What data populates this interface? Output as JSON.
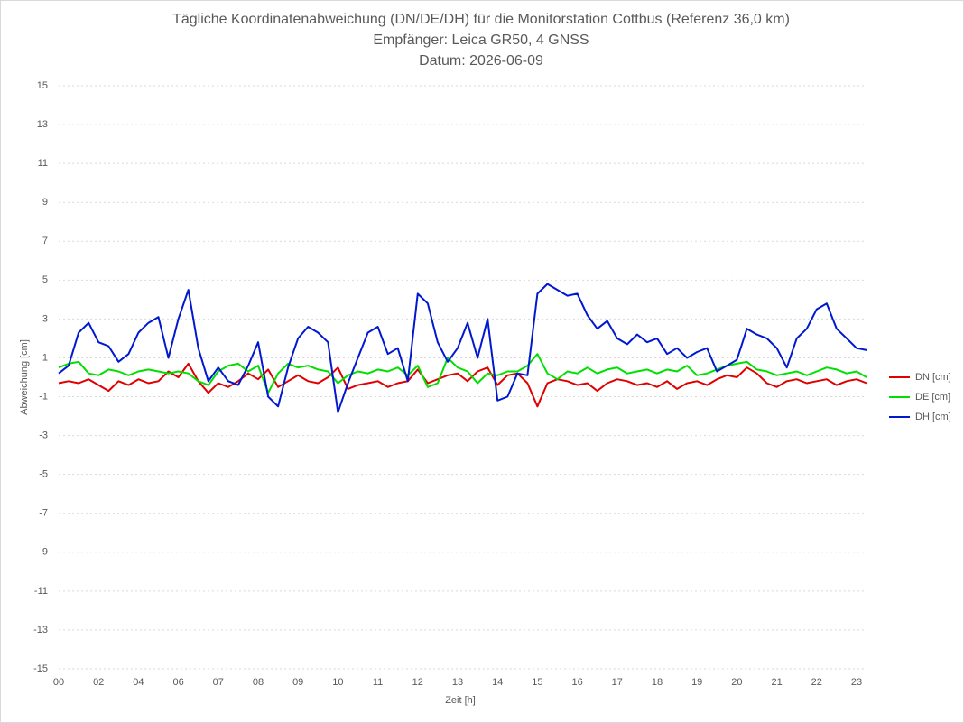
{
  "chart_data": {
    "type": "line",
    "title": "Tägliche Koordinatenabweichung (DN/DE/DH) für die Monitorstation Cottbus (Referenz 36,0 km)",
    "subtitle": [
      "Empfänger: Leica GR50, 4 GNSS",
      "Datum: 2026-06-09"
    ],
    "x_label": "Zeit [h]",
    "y_label": "Abweichung [cm]",
    "categories": [
      "00",
      null,
      null,
      null,
      "02",
      null,
      null,
      null,
      "04",
      null,
      null,
      null,
      "06",
      null,
      null,
      null,
      "07",
      null,
      null,
      null,
      "08",
      null,
      null,
      null,
      "09",
      null,
      null,
      null,
      "10",
      null,
      null,
      null,
      "11",
      null,
      null,
      null,
      "12",
      null,
      null,
      null,
      "13",
      null,
      null,
      null,
      "14",
      null,
      null,
      null,
      "15",
      null,
      null,
      null,
      "16",
      null,
      null,
      null,
      "17",
      null,
      null,
      null,
      "18",
      null,
      null,
      null,
      "19",
      null,
      null,
      null,
      "20",
      null,
      null,
      null,
      "21",
      null,
      null,
      null,
      "22",
      null,
      null,
      null,
      "23",
      null
    ],
    "series": [
      {
        "name": "DN [cm]",
        "color": "#e00000",
        "values": [
          -0.3,
          -0.2,
          -0.3,
          -0.1,
          -0.4,
          -0.7,
          -0.2,
          -0.4,
          -0.1,
          -0.3,
          -0.2,
          0.3,
          0.0,
          0.7,
          -0.2,
          -0.8,
          -0.3,
          -0.5,
          -0.2,
          0.2,
          -0.1,
          0.4,
          -0.5,
          -0.2,
          0.1,
          -0.2,
          -0.3,
          0.0,
          0.5,
          -0.6,
          -0.4,
          -0.3,
          -0.2,
          -0.5,
          -0.3,
          -0.2,
          0.4,
          -0.3,
          -0.1,
          0.1,
          0.2,
          -0.2,
          0.3,
          0.5,
          -0.4,
          0.1,
          0.2,
          -0.3,
          -1.5,
          -0.3,
          -0.1,
          -0.2,
          -0.4,
          -0.3,
          -0.7,
          -0.3,
          -0.1,
          -0.2,
          -0.4,
          -0.3,
          -0.5,
          -0.2,
          -0.6,
          -0.3,
          -0.2,
          -0.4,
          -0.1,
          0.1,
          0.0,
          0.5,
          0.2,
          -0.3,
          -0.5,
          -0.2,
          -0.1,
          -0.3,
          -0.2,
          -0.1,
          -0.4,
          -0.2,
          -0.1,
          -0.3
        ]
      },
      {
        "name": "DE [cm]",
        "color": "#00e000",
        "values": [
          0.5,
          0.7,
          0.8,
          0.2,
          0.1,
          0.4,
          0.3,
          0.1,
          0.3,
          0.4,
          0.3,
          0.2,
          0.3,
          0.2,
          -0.2,
          -0.4,
          0.3,
          0.6,
          0.7,
          0.3,
          0.6,
          -0.8,
          0.2,
          0.7,
          0.5,
          0.6,
          0.4,
          0.3,
          -0.3,
          0.1,
          0.3,
          0.2,
          0.4,
          0.3,
          0.5,
          0.1,
          0.6,
          -0.5,
          -0.3,
          1.0,
          0.5,
          0.3,
          -0.3,
          0.2,
          0.1,
          0.3,
          0.3,
          0.6,
          1.2,
          0.2,
          -0.1,
          0.3,
          0.2,
          0.5,
          0.2,
          0.4,
          0.5,
          0.2,
          0.3,
          0.4,
          0.2,
          0.4,
          0.3,
          0.6,
          0.1,
          0.2,
          0.4,
          0.6,
          0.7,
          0.8,
          0.4,
          0.3,
          0.1,
          0.2,
          0.3,
          0.1,
          0.3,
          0.5,
          0.4,
          0.2,
          0.3,
          0.0
        ]
      },
      {
        "name": "DH [cm]",
        "color": "#0018d0",
        "values": [
          0.2,
          0.6,
          2.3,
          2.8,
          1.8,
          1.6,
          0.8,
          1.2,
          2.3,
          2.8,
          3.1,
          1.0,
          3.0,
          4.5,
          1.5,
          -0.2,
          0.5,
          -0.2,
          -0.4,
          0.6,
          1.8,
          -1.0,
          -1.5,
          0.5,
          2.0,
          2.6,
          2.3,
          1.8,
          -1.8,
          -0.3,
          1.0,
          2.3,
          2.6,
          1.2,
          1.5,
          -0.2,
          4.3,
          3.8,
          1.8,
          0.8,
          1.5,
          2.8,
          1.0,
          3.0,
          -1.2,
          -1.0,
          0.2,
          0.1,
          4.3,
          4.8,
          4.5,
          4.2,
          4.3,
          3.2,
          2.5,
          2.9,
          2.0,
          1.7,
          2.2,
          1.8,
          2.0,
          1.2,
          1.5,
          1.0,
          1.3,
          1.5,
          0.3,
          0.6,
          0.9,
          2.5,
          2.2,
          2.0,
          1.5,
          0.5,
          2.0,
          2.5,
          3.5,
          3.8,
          2.5,
          2.0,
          1.5,
          1.4
        ]
      }
    ],
    "ylim": [
      -15,
      15
    ],
    "yticks": [
      -15,
      -13,
      -11,
      -9,
      -7,
      -5,
      -3,
      -1,
      1,
      3,
      5,
      7,
      9,
      11,
      13,
      15
    ],
    "grid": true,
    "legend": "right"
  }
}
